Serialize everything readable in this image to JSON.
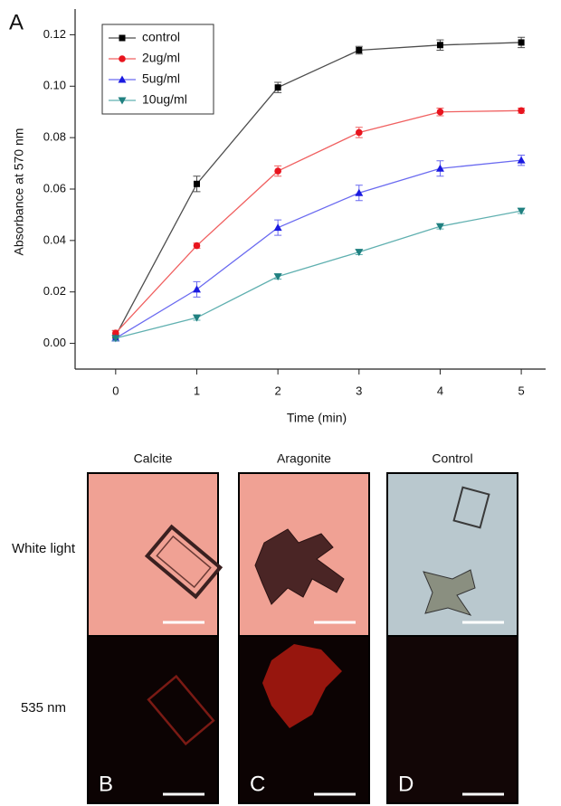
{
  "chart_data": {
    "type": "line",
    "panel_label": "A",
    "x_label": "Time (min)",
    "y_label": "Absorbance at 570 nm",
    "x": [
      0,
      1,
      2,
      3,
      4,
      5
    ],
    "xlim": [
      -0.5,
      5.3
    ],
    "xticks": [
      0,
      1,
      2,
      3,
      4,
      5
    ],
    "ylim": [
      -0.01,
      0.13
    ],
    "yticks": [
      {
        "value": 0,
        "label": "0.00"
      },
      0.02,
      0.04,
      0.06,
      0.08,
      {
        "value": 0.1,
        "label": "0.10"
      },
      0.12
    ],
    "legend": "upper left",
    "series": [
      {
        "name": "control",
        "color": "#4d4d4d",
        "marker_color": "#000000",
        "marker": "square",
        "values": [
          0.003,
          0.062,
          0.0995,
          0.114,
          0.116,
          0.117
        ],
        "errors": [
          0.002,
          0.003,
          0.002,
          0.0015,
          0.002,
          0.002
        ]
      },
      {
        "name": "2ug/ml",
        "color": "#f06060",
        "marker_color": "#e8141e",
        "marker": "circle",
        "values": [
          0.004,
          0.038,
          0.067,
          0.082,
          0.09,
          0.0905
        ],
        "errors": [
          0.001,
          0.001,
          0.002,
          0.002,
          0.0015,
          0.001
        ]
      },
      {
        "name": "5ug/ml",
        "color": "#6a6af0",
        "marker_color": "#1a1ae0",
        "marker": "triangle",
        "values": [
          0.002,
          0.021,
          0.045,
          0.0585,
          0.068,
          0.0712
        ],
        "errors": [
          0.001,
          0.003,
          0.003,
          0.003,
          0.003,
          0.002
        ]
      },
      {
        "name": "10ug/ml",
        "color": "#60b0b0",
        "marker_color": "#208080",
        "marker": "triangle-down",
        "values": [
          0.002,
          0.01,
          0.026,
          0.0355,
          0.0455,
          0.0515
        ],
        "errors": [
          0.001,
          0.001,
          0.001,
          0.001,
          0.001,
          0.001
        ]
      }
    ]
  },
  "images": {
    "columns": [
      "Calcite",
      "Aragonite",
      "Control"
    ],
    "rows": [
      "White light",
      "535 nm"
    ],
    "letters": [
      "B",
      "C",
      "D"
    ]
  }
}
